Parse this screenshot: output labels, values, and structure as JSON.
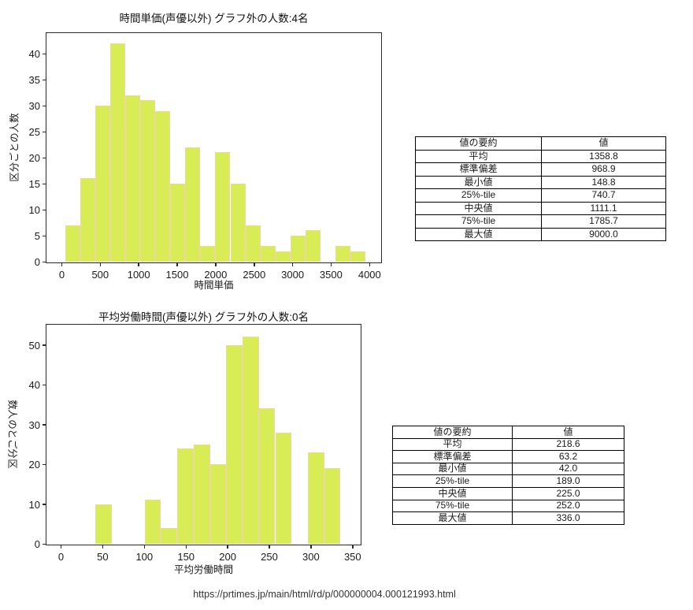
{
  "chart_data": [
    {
      "type": "bar",
      "title": "時間単価(声優以外) グラフ外の人数:4名",
      "xlabel": "時間単価",
      "ylabel": "区分ごとの人数",
      "bin_start": 50,
      "bin_width": 195,
      "counts": [
        7,
        16,
        30,
        42,
        32,
        31,
        29,
        15,
        22,
        3,
        21,
        15,
        7,
        3,
        2,
        5,
        6,
        0,
        3,
        2
      ],
      "xticks": [
        0,
        500,
        1000,
        1500,
        2000,
        2500,
        3000,
        3500,
        4000
      ],
      "yticks": [
        0,
        5,
        10,
        15,
        20,
        25,
        30,
        35,
        40
      ],
      "xlim": [
        -200,
        4150
      ],
      "ylim": [
        0,
        44
      ],
      "grid": false,
      "bar_color": "#d8ec55",
      "bar_edge_color": "#ecd9a2"
    },
    {
      "type": "bar",
      "title": "平均労働時間(声優以外) グラフ外の人数:0名",
      "xlabel": "平均労働時間",
      "ylabel": "区分ごとの人数",
      "bin_start": 42,
      "bin_width": 19.6,
      "counts": [
        10,
        0,
        0,
        11,
        4,
        24,
        25,
        20,
        50,
        52,
        34,
        28,
        0,
        23,
        19
      ],
      "xticks": [
        0,
        50,
        100,
        150,
        200,
        250,
        300,
        350
      ],
      "yticks": [
        0,
        10,
        20,
        30,
        40,
        50
      ],
      "xlim": [
        -17,
        361
      ],
      "ylim": [
        0,
        55
      ],
      "grid": false,
      "bar_color": "#d8ec55",
      "bar_edge_color": "#ecd9a2"
    }
  ],
  "summary_tables": [
    {
      "headers": [
        "値の要約",
        "値"
      ],
      "rows": [
        [
          "平均",
          "1358.8"
        ],
        [
          "標準偏差",
          "968.9"
        ],
        [
          "最小値",
          "148.8"
        ],
        [
          "25%-tile",
          "740.7"
        ],
        [
          "中央値",
          "1111.1"
        ],
        [
          "75%-tile",
          "1785.7"
        ],
        [
          "最大値",
          "9000.0"
        ]
      ]
    },
    {
      "headers": [
        "値の要約",
        "値"
      ],
      "rows": [
        [
          "平均",
          "218.6"
        ],
        [
          "標準偏差",
          "63.2"
        ],
        [
          "最小値",
          "42.0"
        ],
        [
          "25%-tile",
          "189.0"
        ],
        [
          "中央値",
          "225.0"
        ],
        [
          "75%-tile",
          "252.0"
        ],
        [
          "最大値",
          "336.0"
        ]
      ]
    }
  ],
  "footer": {
    "url": "https://prtimes.jp/main/html/rd/p/000000004.000121993.html"
  }
}
